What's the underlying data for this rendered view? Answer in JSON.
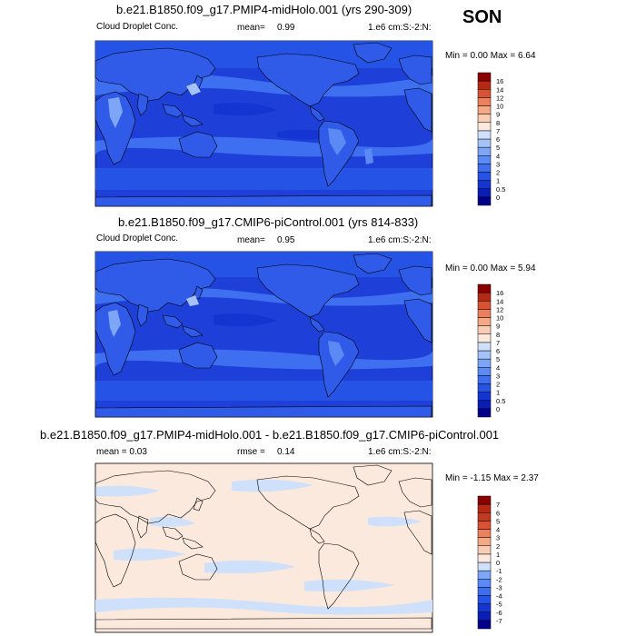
{
  "season": "SON",
  "panels": [
    {
      "title": "b.e21.B1850.f09_g17.PMIP4-midHolo.001 (yrs 290-309)",
      "left_label": "Cloud Droplet Conc.",
      "stat_label": "mean=",
      "stat_value": "0.99",
      "units": "1.e6 cm:S:-2:N:",
      "minmax": "Min =   0.00 Max =   6.64",
      "palette": "abs"
    },
    {
      "title": "b.e21.B1850.f09_g17.CMIP6-piControl.001 (yrs 814-833)",
      "left_label": "Cloud Droplet Conc.",
      "stat_label": "mean=",
      "stat_value": "0.95",
      "units": "1.e6 cm:S:-2:N:",
      "minmax": "Min =   0.00 Max =   5.94",
      "palette": "abs"
    },
    {
      "title": "b.e21.B1850.f09_g17.PMIP4-midHolo.001 - b.e21.B1850.f09_g17.CMIP6-piControl.001",
      "left_label": "mean =   0.03",
      "stat_label": "rmse =",
      "stat_value": "0.14",
      "units": "1.e6 cm:S:-2:N:",
      "minmax": "Min =  -1.15 Max =   2.37",
      "palette": "diff"
    }
  ],
  "chart_data": [
    {
      "type": "heatmap",
      "title": "b.e21.B1850.f09_g17.PMIP4-midHolo.001 (yrs 290-309)",
      "variable": "Cloud Droplet Conc.",
      "units": "1.e6 cm:S:-2:N:",
      "mean": 0.99,
      "min": 0.0,
      "max": 6.64,
      "colorbar_levels": [
        "0",
        "0.5",
        "1",
        "2",
        "3",
        "4",
        "5",
        "6",
        "7",
        "8",
        "9",
        "10",
        "12",
        "14",
        "16"
      ],
      "colorbar_colors": [
        "#00008b",
        "#0a1db4",
        "#1535d2",
        "#2553e6",
        "#3d6ff0",
        "#5b8af4",
        "#7da6f7",
        "#a5c3f9",
        "#cfe0fb",
        "#fbe9dd",
        "#f8cdb3",
        "#f3a886",
        "#ec7f5c",
        "#d95233",
        "#b42a14",
        "#8b0000"
      ],
      "grid": false,
      "legend": "right"
    },
    {
      "type": "heatmap",
      "title": "b.e21.B1850.f09_g17.CMIP6-piControl.001 (yrs 814-833)",
      "variable": "Cloud Droplet Conc.",
      "units": "1.e6 cm:S:-2:N:",
      "mean": 0.95,
      "min": 0.0,
      "max": 5.94,
      "colorbar_levels": [
        "0",
        "0.5",
        "1",
        "2",
        "3",
        "4",
        "5",
        "6",
        "7",
        "8",
        "9",
        "10",
        "12",
        "14",
        "16"
      ],
      "colorbar_colors": [
        "#00008b",
        "#0a1db4",
        "#1535d2",
        "#2553e6",
        "#3d6ff0",
        "#5b8af4",
        "#7da6f7",
        "#a5c3f9",
        "#cfe0fb",
        "#fbe9dd",
        "#f8cdb3",
        "#f3a886",
        "#ec7f5c",
        "#d95233",
        "#b42a14",
        "#8b0000"
      ],
      "grid": false,
      "legend": "right"
    },
    {
      "type": "heatmap",
      "title": "b.e21.B1850.f09_g17.PMIP4-midHolo.001 - b.e21.B1850.f09_g17.CMIP6-piControl.001",
      "units": "1.e6 cm:S:-2:N:",
      "mean": 0.03,
      "rmse": 0.14,
      "min": -1.15,
      "max": 2.37,
      "colorbar_levels": [
        "-7",
        "-6",
        "-5",
        "-4",
        "-3",
        "-2",
        "-1",
        "0",
        "1",
        "2",
        "3",
        "4",
        "5",
        "6",
        "7"
      ],
      "colorbar_colors": [
        "#00008b",
        "#0a1db4",
        "#1535d2",
        "#2553e6",
        "#3d6ff0",
        "#5b8af4",
        "#7da6f7",
        "#cfe0fb",
        "#fbe9dd",
        "#f8cdb3",
        "#f3a886",
        "#ec7f5c",
        "#d95233",
        "#c43a1f",
        "#b42a14",
        "#8b0000"
      ],
      "grid": false,
      "legend": "right"
    }
  ]
}
